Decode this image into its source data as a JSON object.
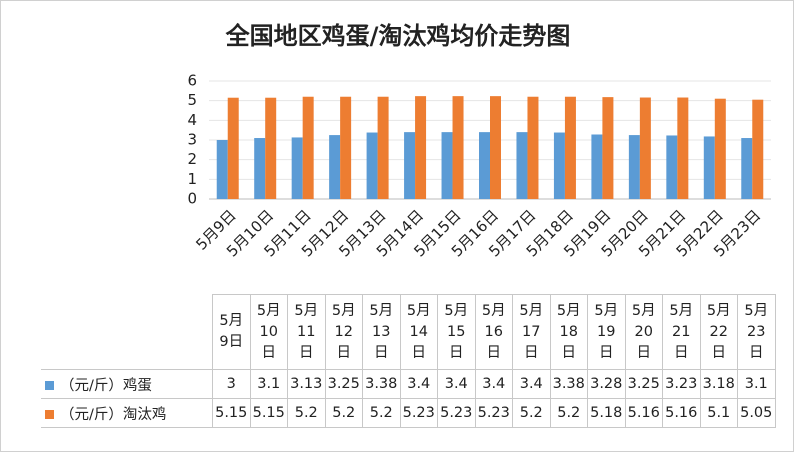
{
  "chart_data": {
    "type": "bar",
    "title": "全国地区鸡蛋/淘汰鸡均价走势图",
    "categories": [
      "5月9日",
      "5月10日",
      "5月11日",
      "5月12日",
      "5月13日",
      "5月14日",
      "5月15日",
      "5月16日",
      "5月17日",
      "5月18日",
      "5月19日",
      "5月20日",
      "5月21日",
      "5月22日",
      "5月23日"
    ],
    "series": [
      {
        "name": "（元/斤）鸡蛋",
        "color": "#5b9bd5",
        "values": [
          3,
          3.1,
          3.13,
          3.25,
          3.38,
          3.4,
          3.4,
          3.4,
          3.4,
          3.38,
          3.28,
          3.25,
          3.23,
          3.18,
          3.1
        ]
      },
      {
        "name": "（元/斤）淘汰鸡",
        "color": "#ed7d31",
        "values": [
          5.15,
          5.15,
          5.2,
          5.2,
          5.2,
          5.23,
          5.23,
          5.23,
          5.2,
          5.2,
          5.18,
          5.16,
          5.16,
          5.1,
          5.05
        ]
      }
    ],
    "ylim": [
      0,
      6
    ],
    "yticks": [
      0,
      1,
      2,
      3,
      4,
      5,
      6
    ],
    "grid": true
  }
}
